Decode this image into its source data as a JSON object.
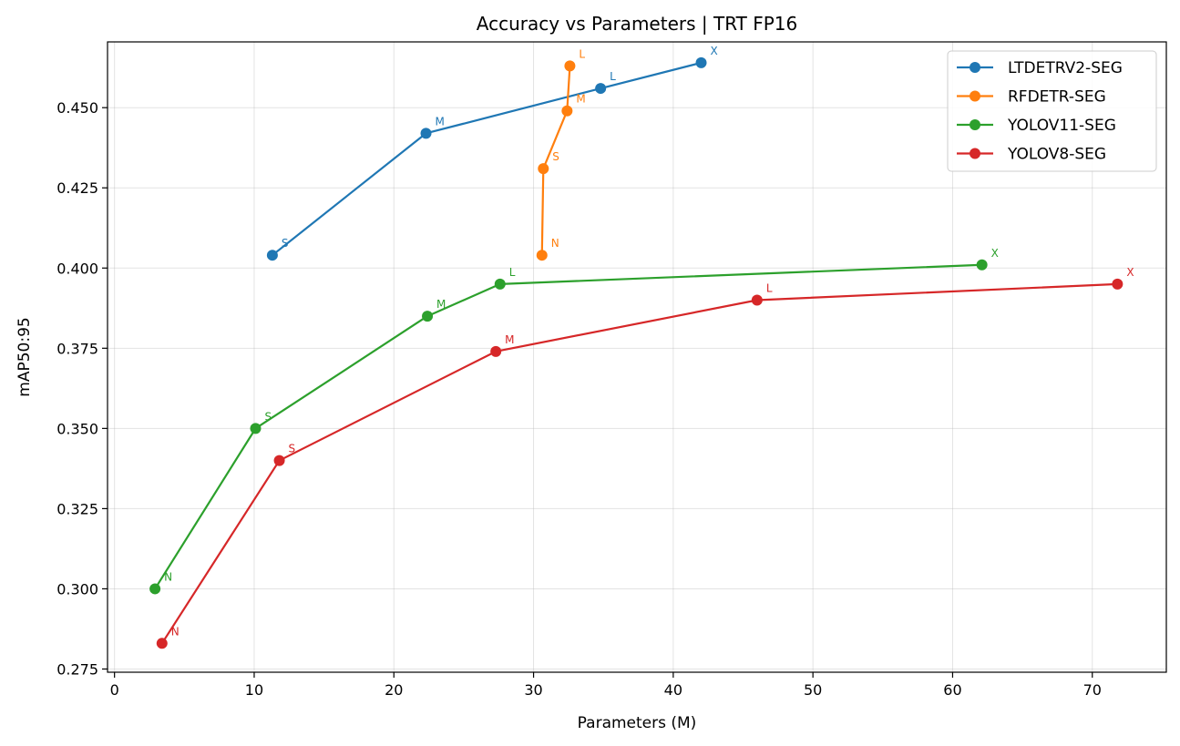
{
  "chart_data": {
    "type": "line",
    "title": "Accuracy vs Parameters  |  TRT FP16",
    "xlabel": "Parameters (M)",
    "ylabel": "mAP50:95",
    "xlim": [
      -0.5,
      75.3
    ],
    "ylim": [
      0.274,
      0.4705
    ],
    "x_ticks": [
      "0",
      "10",
      "20",
      "30",
      "40",
      "50",
      "60",
      "70"
    ],
    "y_ticks": [
      "0.275",
      "0.300",
      "0.325",
      "0.350",
      "0.375",
      "0.400",
      "0.425",
      "0.450"
    ],
    "grid": true,
    "legend_position": "top-right",
    "series": [
      {
        "name": "LTDETRV2-SEG",
        "color": "#1f77b4",
        "points": [
          {
            "label": "S",
            "x": 11.3,
            "y": 0.404
          },
          {
            "label": "M",
            "x": 22.3,
            "y": 0.442
          },
          {
            "label": "L",
            "x": 34.8,
            "y": 0.456
          },
          {
            "label": "X",
            "x": 42.0,
            "y": 0.464
          }
        ]
      },
      {
        "name": "RFDETR-SEG",
        "color": "#ff7f0e",
        "points": [
          {
            "label": "N",
            "x": 30.6,
            "y": 0.404
          },
          {
            "label": "S",
            "x": 30.7,
            "y": 0.431
          },
          {
            "label": "M",
            "x": 32.4,
            "y": 0.449
          },
          {
            "label": "L",
            "x": 32.6,
            "y": 0.463
          }
        ]
      },
      {
        "name": "YOLOV11-SEG",
        "color": "#2ca02c",
        "points": [
          {
            "label": "N",
            "x": 2.9,
            "y": 0.3
          },
          {
            "label": "S",
            "x": 10.1,
            "y": 0.35
          },
          {
            "label": "M",
            "x": 22.4,
            "y": 0.385
          },
          {
            "label": "L",
            "x": 27.6,
            "y": 0.395
          },
          {
            "label": "X",
            "x": 62.1,
            "y": 0.401
          }
        ]
      },
      {
        "name": "YOLOV8-SEG",
        "color": "#d62728",
        "points": [
          {
            "label": "N",
            "x": 3.4,
            "y": 0.283
          },
          {
            "label": "S",
            "x": 11.8,
            "y": 0.34
          },
          {
            "label": "M",
            "x": 27.3,
            "y": 0.374
          },
          {
            "label": "L",
            "x": 46.0,
            "y": 0.39
          },
          {
            "label": "X",
            "x": 71.8,
            "y": 0.395
          }
        ]
      }
    ]
  }
}
